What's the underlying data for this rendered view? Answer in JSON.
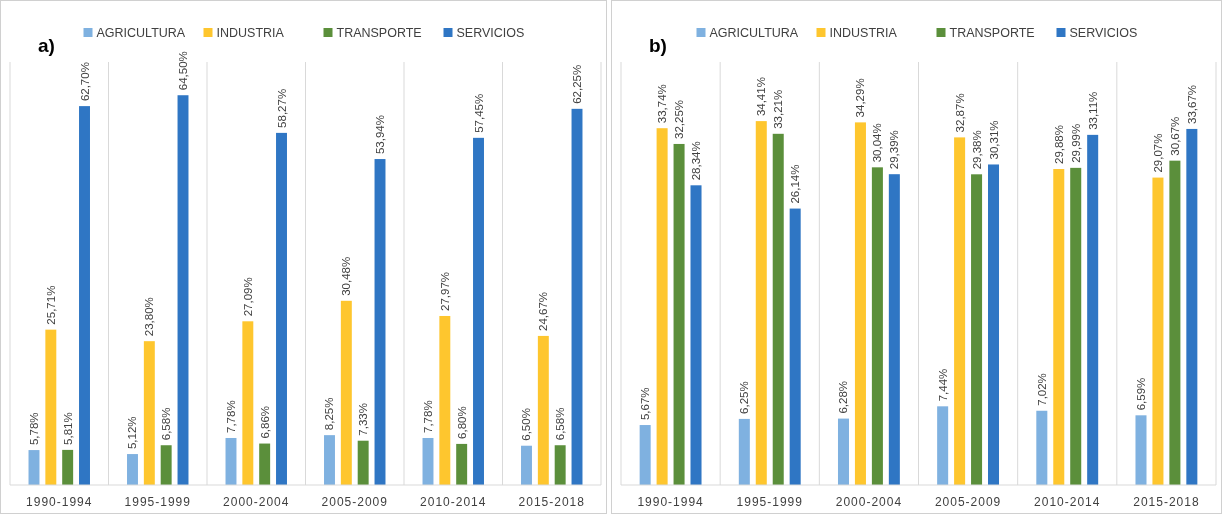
{
  "chart_data": [
    {
      "type": "bar",
      "title": "a)",
      "categories": [
        "1990-1994",
        "1995-1999",
        "2000-2004",
        "2005-2009",
        "2010-2014",
        "2015-2018"
      ],
      "ylim": [
        0,
        70
      ],
      "tick_labels": "x",
      "grid": "x",
      "legend": "top",
      "series": [
        {
          "name": "AGRICULTURA",
          "color": "#7fb1e0",
          "values": [
            5.78,
            5.12,
            7.78,
            8.25,
            7.78,
            6.5
          ],
          "value_labels": [
            "5,78%",
            "5,12%",
            "7,78%",
            "8,25%",
            "7,78%",
            "6,50%"
          ]
        },
        {
          "name": "INDUSTRIA",
          "color": "#fec62e",
          "values": [
            25.71,
            23.8,
            27.09,
            30.48,
            27.97,
            24.67
          ],
          "value_labels": [
            "25,71%",
            "23,80%",
            "27,09%",
            "30,48%",
            "27,97%",
            "24,67%"
          ]
        },
        {
          "name": "TRANSPORTE",
          "color": "#5b8f3b",
          "values": [
            5.81,
            6.58,
            6.86,
            7.33,
            6.8,
            6.58
          ],
          "value_labels": [
            "5,81%",
            "6,58%",
            "6,86%",
            "7,33%",
            "6,80%",
            "6,58%"
          ]
        },
        {
          "name": "SERVICIOS",
          "color": "#2f76c4",
          "values": [
            62.7,
            64.5,
            58.27,
            53.94,
            57.45,
            62.25
          ],
          "value_labels": [
            "62,70%",
            "64,50%",
            "58,27%",
            "53,94%",
            "57,45%",
            "62,25%"
          ]
        }
      ]
    },
    {
      "type": "bar",
      "title": "b)",
      "categories": [
        "1990-1994",
        "1995-1999",
        "2000-2004",
        "2005-2009",
        "2010-2014",
        "2015-2018"
      ],
      "ylim": [
        0,
        40
      ],
      "tick_labels": "x",
      "grid": "x",
      "legend": "top",
      "series": [
        {
          "name": "AGRICULTURA",
          "color": "#7fb1e0",
          "values": [
            5.67,
            6.25,
            6.28,
            7.44,
            7.02,
            6.59
          ],
          "value_labels": [
            "5,67%",
            "6,25%",
            "6,28%",
            "7,44%",
            "7,02%",
            "6,59%"
          ]
        },
        {
          "name": "INDUSTRIA",
          "color": "#fec62e",
          "values": [
            33.74,
            34.41,
            34.29,
            32.87,
            29.88,
            29.07
          ],
          "value_labels": [
            "33,74%",
            "34,41%",
            "34,29%",
            "32,87%",
            "29,88%",
            "29,07%"
          ]
        },
        {
          "name": "TRANSPORTE",
          "color": "#5b8f3b",
          "values": [
            32.25,
            33.21,
            30.04,
            29.38,
            29.99,
            30.67
          ],
          "value_labels": [
            "32,25%",
            "33,21%",
            "30,04%",
            "29,38%",
            "29,99%",
            "30,67%"
          ]
        },
        {
          "name": "SERVICIOS",
          "color": "#2f76c4",
          "values": [
            28.34,
            26.14,
            29.39,
            30.31,
            33.11,
            33.67
          ],
          "value_labels": [
            "28,34%",
            "26,14%",
            "29,39%",
            "30,31%",
            "33,11%",
            "33,67%"
          ]
        }
      ]
    }
  ]
}
